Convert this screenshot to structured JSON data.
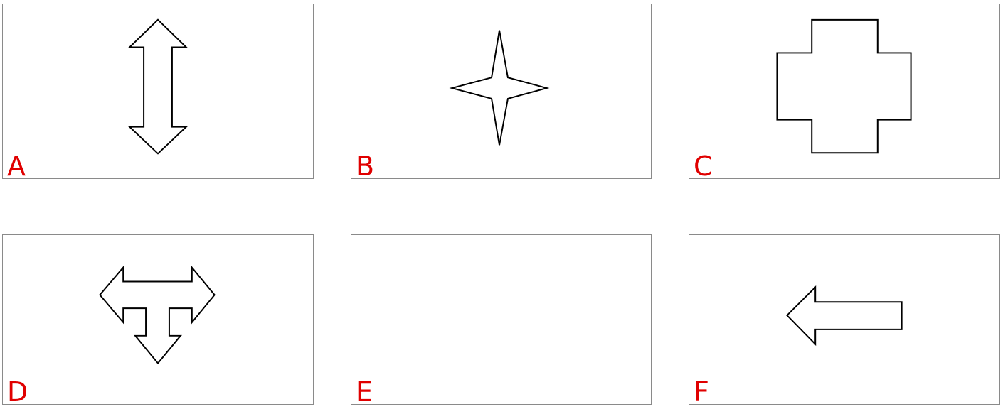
{
  "colors": {
    "label": "#e00000",
    "panel_border": "#8a8a8a",
    "shape_stroke": "#000000"
  },
  "panels": [
    {
      "label": "A",
      "icon": "double-vertical-arrow-icon"
    },
    {
      "label": "B",
      "icon": "four-point-star-icon"
    },
    {
      "label": "C",
      "icon": "cross-shape-icon"
    },
    {
      "label": "D",
      "icon": "three-way-arrow-icon"
    },
    {
      "label": "E",
      "icon": ""
    },
    {
      "label": "F",
      "icon": "left-arrow-icon"
    }
  ]
}
